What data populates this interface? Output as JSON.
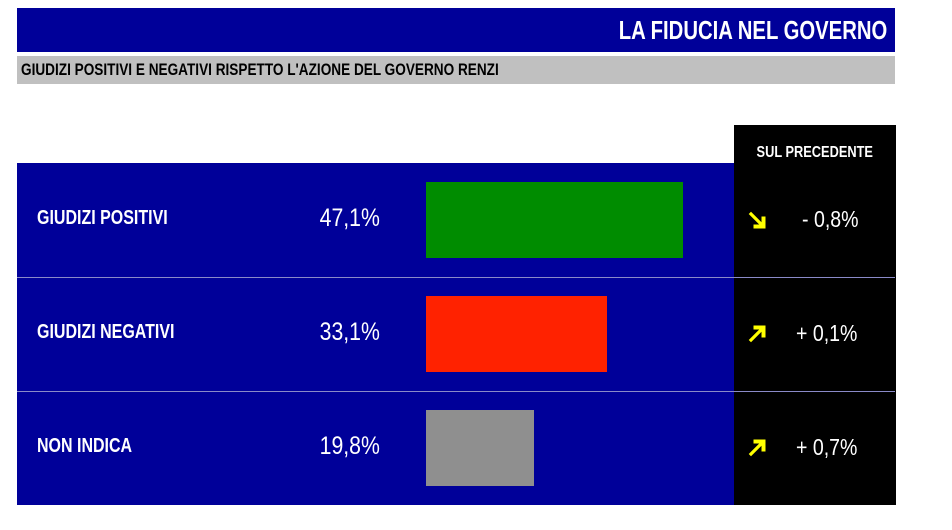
{
  "header": {
    "title": "LA FIDUCIA NEL GOVERNO",
    "subtitle": "GIUDIZI POSITIVI E NEGATIVI RISPETTO L'AZIONE DEL GOVERNO RENZI"
  },
  "change_header": "SUL PRECEDENTE",
  "chart_data": {
    "type": "bar",
    "orientation": "horizontal",
    "categories": [
      "GIUDIZI POSITIVI",
      "GIUDIZI NEGATIVI",
      "NON INDICA"
    ],
    "values": [
      47.1,
      33.1,
      19.8
    ],
    "value_labels": [
      "47,1%",
      "33,1%",
      "19,8%"
    ],
    "changes": [
      -0.8,
      0.1,
      0.7
    ],
    "change_labels": [
      "- 0,8%",
      "+ 0,1%",
      "+ 0,7%"
    ],
    "change_directions": [
      "down",
      "up",
      "up"
    ],
    "colors": [
      "#008c00",
      "#ff2200",
      "#8f8f8f"
    ],
    "arrow_color": "#ffff00",
    "xlim": [
      0,
      55
    ]
  }
}
